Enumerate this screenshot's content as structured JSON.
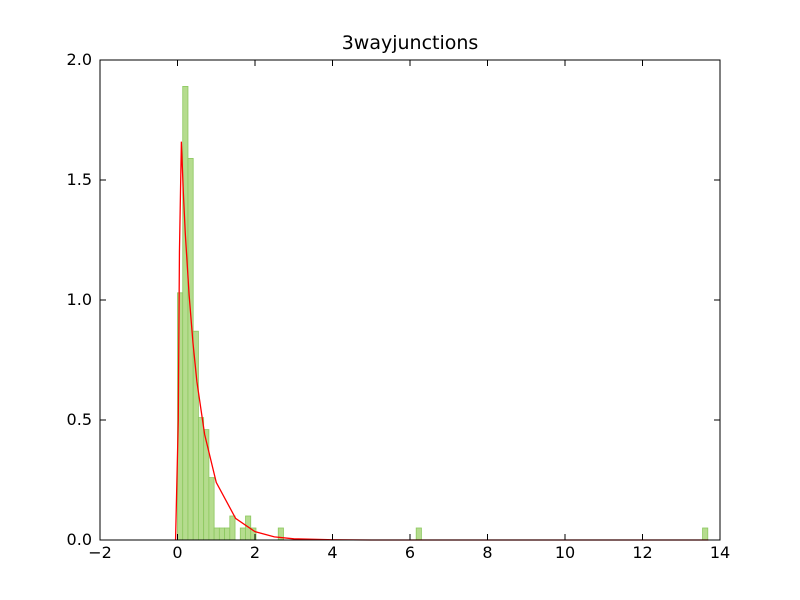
{
  "chart_data": {
    "type": "bar",
    "title": "3wayjunctions",
    "xlabel": "",
    "ylabel": "",
    "xlim": [
      -2,
      14
    ],
    "ylim": [
      0.0,
      2.0
    ],
    "x_ticks": [
      -2,
      0,
      2,
      4,
      6,
      8,
      10,
      12,
      14
    ],
    "x_tick_labels": [
      "−2",
      "0",
      "2",
      "4",
      "6",
      "8",
      "10",
      "12",
      "14"
    ],
    "y_ticks": [
      0.0,
      0.5,
      1.0,
      1.5,
      2.0
    ],
    "y_tick_labels": [
      "0.0",
      "0.5",
      "1.0",
      "1.5",
      "2.0"
    ],
    "grid": false,
    "histogram": {
      "bin_width": 0.135,
      "color": "#b5dc8e",
      "edge_color": "#8cc85f",
      "bins": [
        {
          "x_start": 0.0,
          "value": 1.03
        },
        {
          "x_start": 0.135,
          "value": 1.89
        },
        {
          "x_start": 0.27,
          "value": 1.59
        },
        {
          "x_start": 0.405,
          "value": 0.87
        },
        {
          "x_start": 0.54,
          "value": 0.51
        },
        {
          "x_start": 0.675,
          "value": 0.46
        },
        {
          "x_start": 0.81,
          "value": 0.26
        },
        {
          "x_start": 0.945,
          "value": 0.05
        },
        {
          "x_start": 1.08,
          "value": 0.05
        },
        {
          "x_start": 1.215,
          "value": 0.05
        },
        {
          "x_start": 1.35,
          "value": 0.1
        },
        {
          "x_start": 1.62,
          "value": 0.05
        },
        {
          "x_start": 1.755,
          "value": 0.1
        },
        {
          "x_start": 1.89,
          "value": 0.05
        },
        {
          "x_start": 2.6,
          "value": 0.05
        },
        {
          "x_start": 6.16,
          "value": 0.05
        },
        {
          "x_start": 13.55,
          "value": 0.05
        }
      ]
    },
    "series": [
      {
        "type": "line",
        "color": "#ff0000",
        "x": [
          -0.05,
          0.02,
          0.05,
          0.1,
          0.15,
          0.2,
          0.3,
          0.4,
          0.5,
          0.7,
          1.0,
          1.5,
          2.0,
          2.5,
          3.0,
          4.0,
          5.0,
          6.0,
          8.0,
          10.0,
          12.0,
          13.7
        ],
        "y": [
          0.0,
          0.5,
          1.2,
          1.66,
          1.45,
          1.28,
          1.02,
          0.82,
          0.66,
          0.44,
          0.24,
          0.09,
          0.035,
          0.013,
          0.005,
          0.001,
          0.0,
          0.0,
          0.0,
          0.0,
          0.0,
          0.0
        ]
      }
    ]
  }
}
